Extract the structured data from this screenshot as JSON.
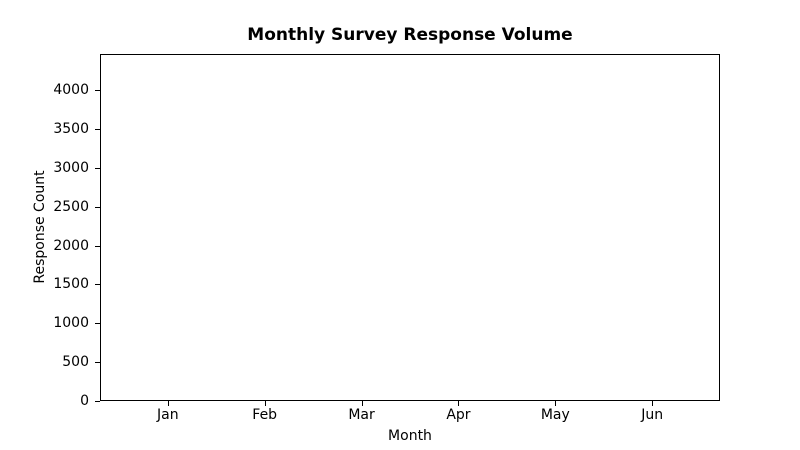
{
  "figure": {
    "background": "#ffffff",
    "text_color": "#000000",
    "spine_color": "#000000"
  },
  "chart_data": {
    "type": "line",
    "title": "Monthly Survey Response Volume",
    "xlabel": "Month",
    "ylabel": "Response Count",
    "categories": [
      "Jan",
      "Feb",
      "Mar",
      "Apr",
      "May",
      "Jun"
    ],
    "series": [],
    "plot_area_empty": true,
    "yticks": [
      0,
      500,
      1000,
      1500,
      2000,
      2500,
      3000,
      3500,
      4000
    ],
    "ylim": [
      0,
      4465
    ],
    "xlim": [
      -0.7,
      5.7
    ],
    "grid": false,
    "legend": "none"
  }
}
